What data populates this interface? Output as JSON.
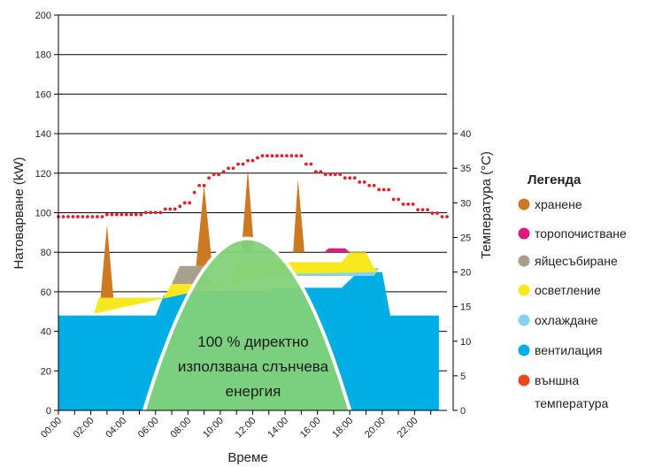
{
  "chart_data": {
    "type": "area",
    "xlabel": "Време",
    "ylabel": "Натоварване (kW)",
    "y2label": "Температура (°C)",
    "ylim": [
      0,
      200
    ],
    "y2lim": [
      0,
      40
    ],
    "yticks": [
      0,
      20,
      40,
      60,
      80,
      100,
      120,
      140,
      160,
      180,
      200
    ],
    "y2ticks": [
      0,
      5,
      10,
      15,
      20,
      25,
      30,
      35,
      40
    ],
    "xlim": [
      0,
      24
    ],
    "xticks": [
      "00:00",
      "02:00",
      "04:00",
      "06:00",
      "08:00",
      "10:00",
      "12:00",
      "14:00",
      "16:00",
      "18:00",
      "20:00",
      "22:00"
    ],
    "grid": "horizontal",
    "legend": {
      "title": "Легенда",
      "position": "right",
      "items": [
        {
          "name": "хранене",
          "color": "#cc7a22"
        },
        {
          "name": "торопочистване",
          "color": "#e0197d"
        },
        {
          "name": "яйцесъбиране",
          "color": "#a89f8c"
        },
        {
          "name": "осветление",
          "color": "#f7e91e"
        },
        {
          "name": "охлаждане",
          "color": "#83d2f1"
        },
        {
          "name": "вентилация",
          "color": "#00aee6"
        },
        {
          "name": "външна температура",
          "color": "#e8481c"
        }
      ]
    },
    "annotation": "100 % директно използвана слънчева енергия",
    "series": {
      "вентилация": [
        [
          0,
          48
        ],
        [
          6,
          48
        ],
        [
          6.5,
          58
        ],
        [
          7,
          58
        ],
        [
          7.5,
          60
        ],
        [
          13,
          60
        ],
        [
          13.5,
          62
        ],
        [
          17.5,
          62
        ],
        [
          18.5,
          70
        ],
        [
          20,
          70
        ],
        [
          20.5,
          48
        ],
        [
          23.5,
          48
        ]
      ],
      "охлаждане": [
        [
          12.5,
          68
        ],
        [
          19.5,
          68
        ],
        [
          19.8,
          72
        ],
        [
          12.5,
          72
        ]
      ],
      "осветление": [
        [
          2.2,
          49
        ],
        [
          2.5,
          57
        ],
        [
          6.5,
          57
        ],
        [
          7,
          64
        ],
        [
          10.5,
          64
        ],
        [
          11,
          75
        ],
        [
          17.5,
          75
        ],
        [
          18,
          80
        ],
        [
          19,
          80
        ],
        [
          19.5,
          72
        ],
        [
          19.8,
          70
        ],
        [
          13.5,
          69
        ]
      ],
      "яйцесъбиране": [
        [
          7,
          64
        ],
        [
          7.5,
          73
        ],
        [
          9,
          73
        ],
        [
          9.5,
          64
        ]
      ],
      "торопочистване": [
        [
          16.4,
          80
        ],
        [
          16.7,
          82
        ],
        [
          17.7,
          82
        ],
        [
          18,
          80
        ]
      ],
      "хранене": [
        [
          [
            2.6,
            57
          ],
          [
            3,
            94
          ],
          [
            3.4,
            57
          ]
        ],
        [
          [
            8.5,
            73
          ],
          [
            9,
            114
          ],
          [
            9.5,
            73
          ]
        ],
        [
          [
            11.3,
            80
          ],
          [
            11.7,
            122
          ],
          [
            12.1,
            80
          ]
        ],
        [
          [
            14.5,
            80
          ],
          [
            14.8,
            117
          ],
          [
            15.2,
            80
          ]
        ]
      ],
      "solar": [
        [
          5.3,
          0
        ],
        [
          11.7,
          87
        ],
        [
          18,
          0
        ]
      ],
      "външна температура": [
        [
          0,
          28
        ],
        [
          0.3,
          28
        ],
        [
          0.6,
          28
        ],
        [
          0.9,
          28
        ],
        [
          1.2,
          28
        ],
        [
          1.5,
          28
        ],
        [
          1.8,
          28
        ],
        [
          2.1,
          28
        ],
        [
          2.4,
          28
        ],
        [
          2.7,
          28
        ],
        [
          3,
          28.3
        ],
        [
          3.3,
          28.3
        ],
        [
          3.6,
          28.3
        ],
        [
          3.9,
          28.3
        ],
        [
          4.2,
          28.3
        ],
        [
          4.5,
          28.3
        ],
        [
          4.8,
          28.3
        ],
        [
          5.1,
          28.3
        ],
        [
          5.4,
          28.6
        ],
        [
          5.7,
          28.6
        ],
        [
          6,
          28.6
        ],
        [
          6.3,
          28.6
        ],
        [
          6.6,
          29.1
        ],
        [
          6.9,
          29.1
        ],
        [
          7.2,
          29.1
        ],
        [
          7.5,
          29.5
        ],
        [
          7.8,
          30
        ],
        [
          8.1,
          30
        ],
        [
          8.4,
          31.5
        ],
        [
          8.7,
          32.5
        ],
        [
          9,
          32.5
        ],
        [
          9.3,
          33.6
        ],
        [
          9.6,
          34.1
        ],
        [
          9.9,
          34.1
        ],
        [
          10.2,
          34.5
        ],
        [
          10.5,
          35
        ],
        [
          10.8,
          35
        ],
        [
          11.1,
          35.6
        ],
        [
          11.4,
          35.6
        ],
        [
          11.7,
          36.1
        ],
        [
          12,
          36.1
        ],
        [
          12.3,
          36.5
        ],
        [
          12.6,
          36.8
        ],
        [
          12.9,
          36.8
        ],
        [
          13.2,
          36.8
        ],
        [
          13.5,
          36.8
        ],
        [
          13.8,
          36.8
        ],
        [
          14.1,
          36.8
        ],
        [
          14.4,
          36.8
        ],
        [
          14.7,
          36.8
        ],
        [
          15,
          36.8
        ],
        [
          15.3,
          35.6
        ],
        [
          15.6,
          35.6
        ],
        [
          15.9,
          34.5
        ],
        [
          16.2,
          34.5
        ],
        [
          16.5,
          34.1
        ],
        [
          16.8,
          34.1
        ],
        [
          17.1,
          34.1
        ],
        [
          17.4,
          34.1
        ],
        [
          17.7,
          33.6
        ],
        [
          18,
          33.6
        ],
        [
          18.3,
          33.6
        ],
        [
          18.6,
          33
        ],
        [
          18.9,
          33
        ],
        [
          19.2,
          32.5
        ],
        [
          19.5,
          32.5
        ],
        [
          19.8,
          31.9
        ],
        [
          20.1,
          31.9
        ],
        [
          20.4,
          31.9
        ],
        [
          20.7,
          30.5
        ],
        [
          21,
          30.5
        ],
        [
          21.3,
          29.8
        ],
        [
          21.6,
          29.8
        ],
        [
          21.9,
          29.8
        ],
        [
          22.2,
          29
        ],
        [
          22.5,
          29
        ],
        [
          22.8,
          29
        ],
        [
          23.1,
          28.5
        ],
        [
          23.4,
          28.5
        ],
        [
          23.7,
          28
        ],
        [
          24,
          28
        ]
      ]
    }
  }
}
